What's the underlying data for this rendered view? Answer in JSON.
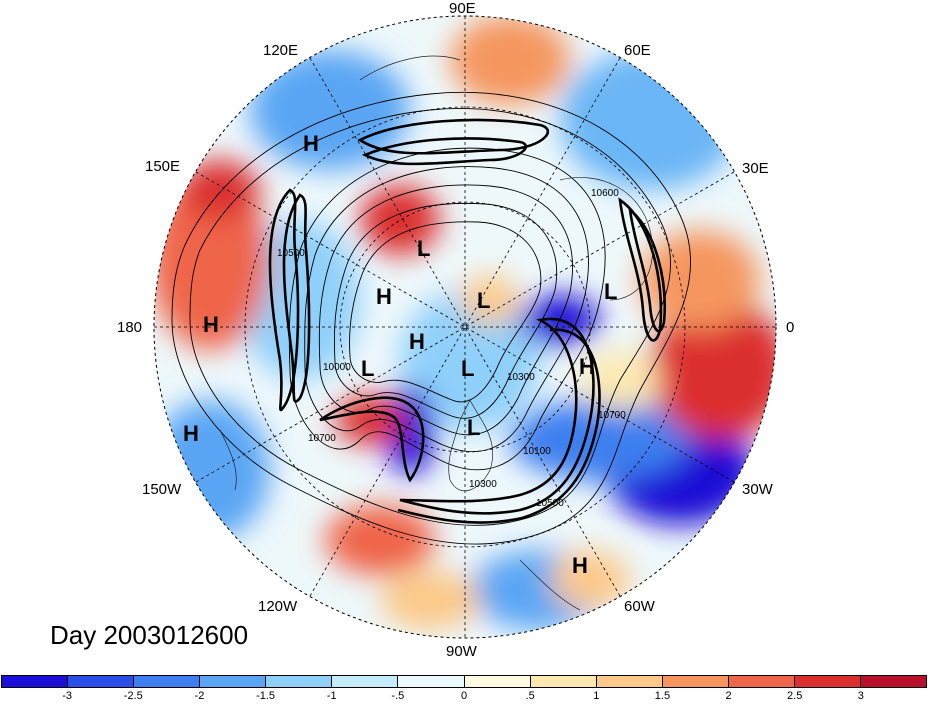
{
  "map": {
    "title": "Day 2003012600",
    "projection": "north-polar-stereographic",
    "longitude_labels": {
      "top": "90E",
      "top_right_1": "60E",
      "top_right_2": "30E",
      "right": "0",
      "bottom_right_1": "30W",
      "bottom_right_2": "60W",
      "bottom": "90W",
      "bottom_left_1": "120W",
      "bottom_left_2": "150W",
      "left": "180",
      "top_left_2": "150E",
      "top_left_1": "120E"
    },
    "pressure_centers": [
      {
        "label": "H",
        "name": "high-east-siberia"
      },
      {
        "label": "H",
        "name": "high-pacific"
      },
      {
        "label": "H",
        "name": "high-bering"
      },
      {
        "label": "H",
        "name": "high-alaska"
      },
      {
        "label": "H",
        "name": "high-arctic"
      },
      {
        "label": "H",
        "name": "high-atlantic"
      },
      {
        "label": "H",
        "name": "high-gulf"
      },
      {
        "label": "L",
        "name": "low-siberia"
      },
      {
        "label": "L",
        "name": "low-arctic-1"
      },
      {
        "label": "L",
        "name": "low-europe"
      },
      {
        "label": "L",
        "name": "low-beaufort"
      },
      {
        "label": "L",
        "name": "low-canada"
      },
      {
        "label": "L",
        "name": "low-hudson"
      }
    ],
    "contour_labels": [
      "10700",
      "10300",
      "10100",
      "10500",
      "10700",
      "10600",
      "10000",
      "10300",
      "10500"
    ]
  },
  "colorbar": {
    "colors": [
      "#1a0fd6",
      "#2a4fe6",
      "#3d7fef",
      "#5aa6f4",
      "#8fd0fa",
      "#c4ecfd",
      "#eafaff",
      "#fffbe0",
      "#fde9b0",
      "#fcc98a",
      "#f5965f",
      "#ef6549",
      "#db2f2f",
      "#b8102a"
    ],
    "tick_labels": [
      "-3",
      "-2.5",
      "-2",
      "-1.5",
      "-1",
      "-.5",
      "0",
      ".5",
      "1",
      "1.5",
      "2",
      "2.5",
      "3"
    ]
  }
}
